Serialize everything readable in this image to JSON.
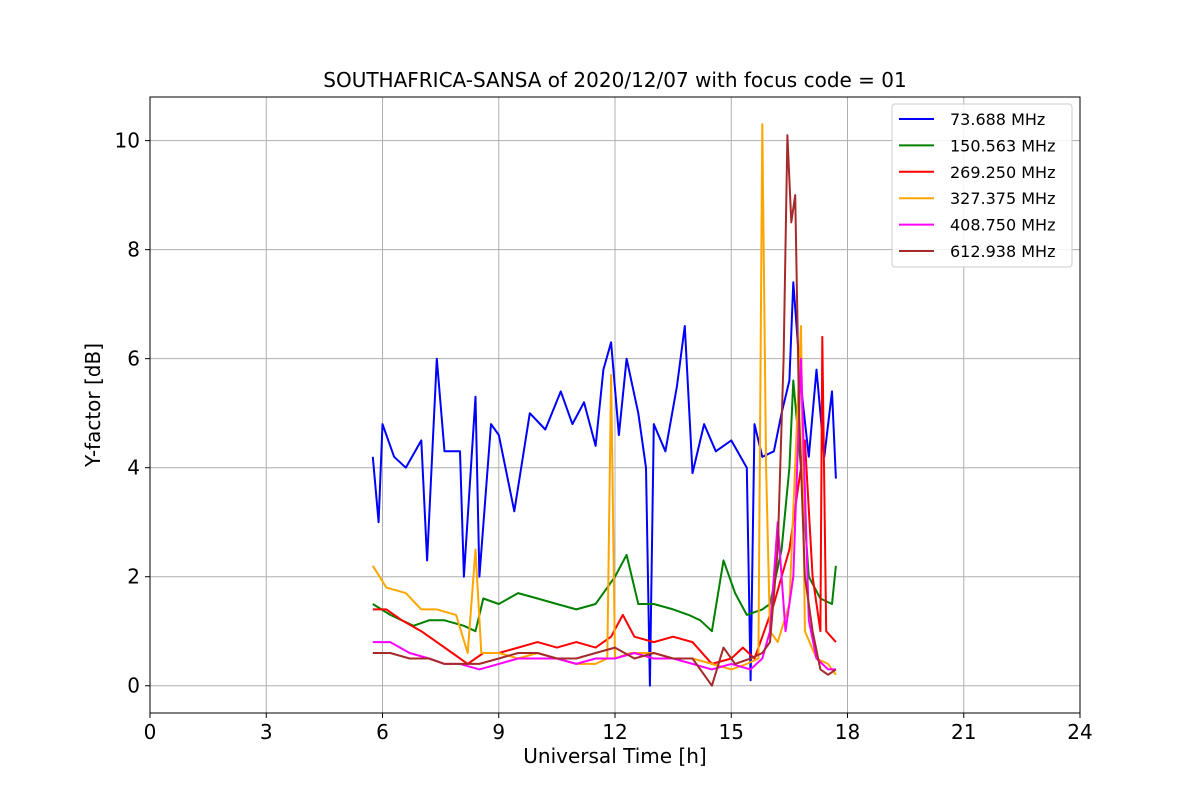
{
  "chart_data": {
    "type": "line",
    "title": "SOUTHAFRICA-SANSA of 2020/12/07 with focus code = 01",
    "xlabel": "Universal Time [h]",
    "ylabel": "Y-factor [dB]",
    "xlim": [
      0,
      24
    ],
    "ylim": [
      -0.5,
      10.8
    ],
    "xticks": [
      0,
      3,
      6,
      9,
      12,
      15,
      18,
      21,
      24
    ],
    "yticks": [
      0,
      2,
      4,
      6,
      8,
      10
    ],
    "grid": true,
    "legend_position": "top-right",
    "series": [
      {
        "name": " 73.688 MHz",
        "color": "#0000ff",
        "points": [
          [
            5.75,
            4.2
          ],
          [
            5.9,
            3.0
          ],
          [
            6.0,
            4.8
          ],
          [
            6.3,
            4.2
          ],
          [
            6.6,
            4.0
          ],
          [
            7.0,
            4.5
          ],
          [
            7.15,
            2.3
          ],
          [
            7.4,
            6.0
          ],
          [
            7.6,
            4.3
          ],
          [
            8.0,
            4.3
          ],
          [
            8.1,
            2.0
          ],
          [
            8.4,
            5.3
          ],
          [
            8.5,
            2.0
          ],
          [
            8.8,
            4.8
          ],
          [
            9.0,
            4.6
          ],
          [
            9.4,
            3.2
          ],
          [
            9.8,
            5.0
          ],
          [
            10.2,
            4.7
          ],
          [
            10.6,
            5.4
          ],
          [
            10.9,
            4.8
          ],
          [
            11.2,
            5.2
          ],
          [
            11.5,
            4.4
          ],
          [
            11.7,
            5.8
          ],
          [
            11.9,
            6.3
          ],
          [
            12.1,
            4.6
          ],
          [
            12.3,
            6.0
          ],
          [
            12.6,
            5.0
          ],
          [
            12.8,
            4.0
          ],
          [
            12.9,
            0.0
          ],
          [
            13.0,
            4.8
          ],
          [
            13.3,
            4.3
          ],
          [
            13.6,
            5.5
          ],
          [
            13.8,
            6.6
          ],
          [
            14.0,
            3.9
          ],
          [
            14.3,
            4.8
          ],
          [
            14.6,
            4.3
          ],
          [
            15.0,
            4.5
          ],
          [
            15.4,
            4.0
          ],
          [
            15.5,
            0.1
          ],
          [
            15.6,
            4.8
          ],
          [
            15.8,
            4.2
          ],
          [
            16.1,
            4.3
          ],
          [
            16.3,
            5.0
          ],
          [
            16.5,
            5.6
          ],
          [
            16.6,
            7.4
          ],
          [
            16.8,
            5.5
          ],
          [
            17.0,
            4.2
          ],
          [
            17.2,
            5.8
          ],
          [
            17.4,
            4.2
          ],
          [
            17.6,
            5.4
          ],
          [
            17.7,
            3.8
          ]
        ]
      },
      {
        "name": "150.563 MHz",
        "color": "#008000",
        "points": [
          [
            5.75,
            1.5
          ],
          [
            6.2,
            1.3
          ],
          [
            6.8,
            1.1
          ],
          [
            7.2,
            1.2
          ],
          [
            7.6,
            1.2
          ],
          [
            8.1,
            1.1
          ],
          [
            8.4,
            1.0
          ],
          [
            8.6,
            1.6
          ],
          [
            9.0,
            1.5
          ],
          [
            9.5,
            1.7
          ],
          [
            10.0,
            1.6
          ],
          [
            10.5,
            1.5
          ],
          [
            11.0,
            1.4
          ],
          [
            11.5,
            1.5
          ],
          [
            11.8,
            1.8
          ],
          [
            12.0,
            2.0
          ],
          [
            12.3,
            2.4
          ],
          [
            12.6,
            1.5
          ],
          [
            13.0,
            1.5
          ],
          [
            13.5,
            1.4
          ],
          [
            13.9,
            1.3
          ],
          [
            14.2,
            1.2
          ],
          [
            14.5,
            1.0
          ],
          [
            14.8,
            2.3
          ],
          [
            15.1,
            1.7
          ],
          [
            15.4,
            1.3
          ],
          [
            15.8,
            1.4
          ],
          [
            16.0,
            1.5
          ],
          [
            16.3,
            2.5
          ],
          [
            16.5,
            4.0
          ],
          [
            16.6,
            5.6
          ],
          [
            16.8,
            4.0
          ],
          [
            17.0,
            2.0
          ],
          [
            17.3,
            1.6
          ],
          [
            17.6,
            1.5
          ],
          [
            17.7,
            2.2
          ]
        ]
      },
      {
        "name": "269.250 MHz",
        "color": "#ff0000",
        "points": [
          [
            5.75,
            1.4
          ],
          [
            6.1,
            1.4
          ],
          [
            6.5,
            1.2
          ],
          [
            7.0,
            1.0
          ],
          [
            7.4,
            0.8
          ],
          [
            7.8,
            0.6
          ],
          [
            8.2,
            0.4
          ],
          [
            8.6,
            0.6
          ],
          [
            9.0,
            0.6
          ],
          [
            9.5,
            0.7
          ],
          [
            10.0,
            0.8
          ],
          [
            10.5,
            0.7
          ],
          [
            11.0,
            0.8
          ],
          [
            11.5,
            0.7
          ],
          [
            11.9,
            0.9
          ],
          [
            12.2,
            1.3
          ],
          [
            12.5,
            0.9
          ],
          [
            13.0,
            0.8
          ],
          [
            13.5,
            0.9
          ],
          [
            14.0,
            0.8
          ],
          [
            14.5,
            0.4
          ],
          [
            15.0,
            0.5
          ],
          [
            15.3,
            0.7
          ],
          [
            15.6,
            0.5
          ],
          [
            15.8,
            0.9
          ],
          [
            16.1,
            1.5
          ],
          [
            16.3,
            2.0
          ],
          [
            16.5,
            2.5
          ],
          [
            16.7,
            3.5
          ],
          [
            16.9,
            4.5
          ],
          [
            17.1,
            2.0
          ],
          [
            17.3,
            1.0
          ],
          [
            17.35,
            6.4
          ],
          [
            17.45,
            1.0
          ],
          [
            17.7,
            0.8
          ]
        ]
      },
      {
        "name": "327.375 MHz",
        "color": "#ffa500",
        "points": [
          [
            5.75,
            2.2
          ],
          [
            6.1,
            1.8
          ],
          [
            6.6,
            1.7
          ],
          [
            7.0,
            1.4
          ],
          [
            7.4,
            1.4
          ],
          [
            7.9,
            1.3
          ],
          [
            8.2,
            0.6
          ],
          [
            8.4,
            2.5
          ],
          [
            8.55,
            0.6
          ],
          [
            9.0,
            0.6
          ],
          [
            9.5,
            0.5
          ],
          [
            10.0,
            0.6
          ],
          [
            10.5,
            0.5
          ],
          [
            11.0,
            0.4
          ],
          [
            11.5,
            0.4
          ],
          [
            11.8,
            0.5
          ],
          [
            11.9,
            5.7
          ],
          [
            12.0,
            0.5
          ],
          [
            12.4,
            0.6
          ],
          [
            13.0,
            0.6
          ],
          [
            13.5,
            0.5
          ],
          [
            14.0,
            0.5
          ],
          [
            14.5,
            0.4
          ],
          [
            15.0,
            0.3
          ],
          [
            15.4,
            0.4
          ],
          [
            15.7,
            0.5
          ],
          [
            15.8,
            10.3
          ],
          [
            15.9,
            4.0
          ],
          [
            16.0,
            1.0
          ],
          [
            16.2,
            0.8
          ],
          [
            16.5,
            1.5
          ],
          [
            16.8,
            6.6
          ],
          [
            16.9,
            1.0
          ],
          [
            17.2,
            0.5
          ],
          [
            17.5,
            0.4
          ],
          [
            17.7,
            0.2
          ]
        ]
      },
      {
        "name": "408.750 MHz",
        "color": "#ff00ff",
        "points": [
          [
            5.75,
            0.8
          ],
          [
            6.2,
            0.8
          ],
          [
            6.7,
            0.6
          ],
          [
            7.2,
            0.5
          ],
          [
            7.6,
            0.4
          ],
          [
            8.0,
            0.4
          ],
          [
            8.5,
            0.3
          ],
          [
            9.0,
            0.4
          ],
          [
            9.5,
            0.5
          ],
          [
            10.0,
            0.5
          ],
          [
            10.5,
            0.5
          ],
          [
            11.0,
            0.4
          ],
          [
            11.5,
            0.5
          ],
          [
            12.0,
            0.5
          ],
          [
            12.5,
            0.6
          ],
          [
            13.0,
            0.5
          ],
          [
            13.5,
            0.5
          ],
          [
            14.0,
            0.4
          ],
          [
            14.5,
            0.3
          ],
          [
            15.0,
            0.4
          ],
          [
            15.5,
            0.3
          ],
          [
            15.8,
            0.5
          ],
          [
            16.0,
            1.0
          ],
          [
            16.2,
            3.0
          ],
          [
            16.4,
            1.0
          ],
          [
            16.6,
            2.0
          ],
          [
            16.8,
            6.0
          ],
          [
            17.0,
            1.2
          ],
          [
            17.2,
            0.5
          ],
          [
            17.5,
            0.3
          ],
          [
            17.7,
            0.3
          ]
        ]
      },
      {
        "name": "612.938 MHz",
        "color": "#a52a2a",
        "points": [
          [
            5.75,
            0.6
          ],
          [
            6.2,
            0.6
          ],
          [
            6.7,
            0.5
          ],
          [
            7.2,
            0.5
          ],
          [
            7.6,
            0.4
          ],
          [
            8.0,
            0.4
          ],
          [
            8.5,
            0.4
          ],
          [
            9.0,
            0.5
          ],
          [
            9.5,
            0.6
          ],
          [
            10.0,
            0.6
          ],
          [
            10.5,
            0.5
          ],
          [
            11.0,
            0.5
          ],
          [
            11.5,
            0.6
          ],
          [
            12.0,
            0.7
          ],
          [
            12.5,
            0.5
          ],
          [
            13.0,
            0.6
          ],
          [
            13.5,
            0.5
          ],
          [
            14.0,
            0.5
          ],
          [
            14.5,
            0.0
          ],
          [
            14.8,
            0.7
          ],
          [
            15.1,
            0.4
          ],
          [
            15.5,
            0.5
          ],
          [
            15.8,
            0.6
          ],
          [
            16.0,
            0.8
          ],
          [
            16.2,
            2.5
          ],
          [
            16.35,
            6.0
          ],
          [
            16.45,
            10.1
          ],
          [
            16.55,
            8.5
          ],
          [
            16.65,
            9.0
          ],
          [
            16.75,
            5.0
          ],
          [
            16.9,
            2.0
          ],
          [
            17.1,
            1.0
          ],
          [
            17.3,
            0.3
          ],
          [
            17.5,
            0.2
          ],
          [
            17.7,
            0.3
          ]
        ]
      }
    ]
  }
}
